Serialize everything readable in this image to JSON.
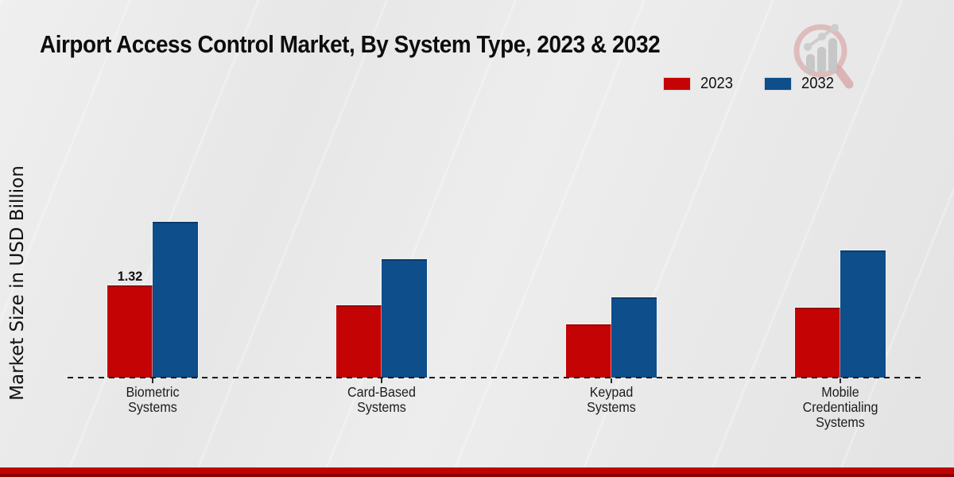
{
  "title": "Airport Access Control Market, By System Type, 2023 & 2032",
  "ylabel": "Market Size in USD Billion",
  "legend": {
    "items": [
      {
        "label": "2023",
        "color": "#c40404"
      },
      {
        "label": "2032",
        "color": "#0d4e8b"
      }
    ]
  },
  "colors": {
    "accent_red": "#c40404",
    "accent_blue": "#0d4e8b",
    "footer_red": "#bf0303",
    "footer_dark_red": "#8a0101",
    "background_gray": "#e8e8e8"
  },
  "icons": {
    "watermark": "magnifier-bar-chart-logo"
  },
  "chart_data": {
    "type": "bar",
    "title": "Airport Access Control Market, By System Type, 2023 & 2032",
    "xlabel": "",
    "ylabel": "Market Size in USD Billion",
    "categories": [
      "Biometric\nSystems",
      "Card-Based\nSystems",
      "Keypad\nSystems",
      "Mobile\nCredentialing\nSystems"
    ],
    "series": [
      {
        "name": "2023",
        "color": "#c40404",
        "values": [
          1.32,
          1.03,
          0.75,
          1.0
        ]
      },
      {
        "name": "2032",
        "color": "#0d4e8b",
        "values": [
          2.25,
          1.7,
          1.15,
          1.83
        ]
      }
    ],
    "value_labels": [
      {
        "series_index": 0,
        "category_index": 0,
        "text": "1.32"
      }
    ],
    "ylim": [
      0,
      2.6
    ],
    "y_ticks_visible": false,
    "grid": false,
    "baseline_style": "dashed",
    "legend_position": "top-right"
  }
}
